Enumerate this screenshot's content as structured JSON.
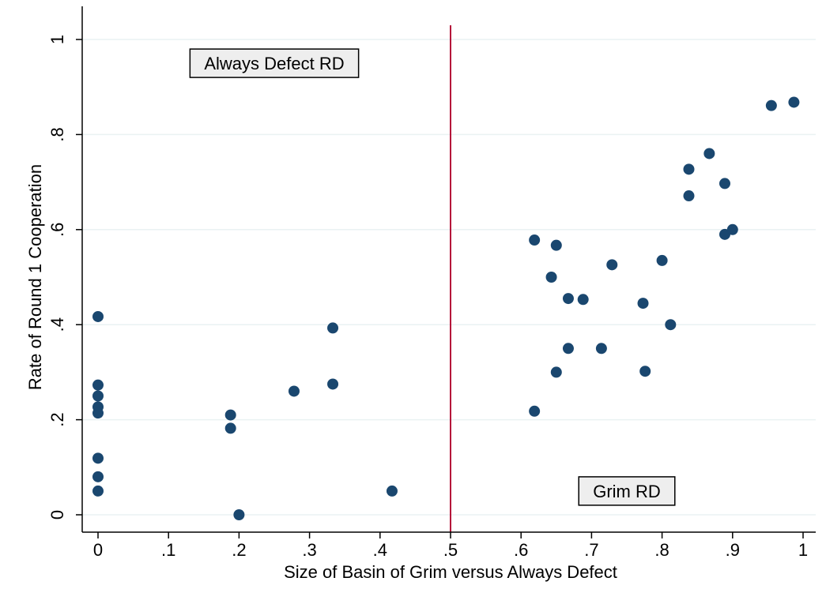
{
  "chart_data": {
    "type": "scatter",
    "title": "",
    "xlabel": "Size of Basin of Grim versus Always Defect",
    "ylabel": "Rate of Round 1 Cooperation",
    "xlim": [
      0,
      1
    ],
    "ylim": [
      0,
      1
    ],
    "grid": true,
    "legend": "none",
    "x_ticks": [
      0,
      0.1,
      0.2,
      0.3,
      0.4,
      0.5,
      0.6,
      0.7,
      0.8,
      0.9,
      1
    ],
    "x_tick_labels": [
      "0",
      ".1",
      ".2",
      ".3",
      ".4",
      ".5",
      ".6",
      ".7",
      ".8",
      ".9",
      "1"
    ],
    "y_ticks": [
      0,
      0.2,
      0.4,
      0.6,
      0.8,
      1
    ],
    "y_tick_labels": [
      "0",
      ".2",
      ".4",
      ".6",
      ".8",
      "1"
    ],
    "reference_line": {
      "x": 0.5,
      "color": "#b5123a"
    },
    "marker_color": "#1a476f",
    "gridline_color": "#eaf2f3",
    "annotations": [
      {
        "text": "Always Defect RD",
        "x": 0.25,
        "y": 0.95
      },
      {
        "text": "Grim RD",
        "x": 0.75,
        "y": 0.05
      }
    ],
    "points": [
      {
        "x": 0,
        "y": 0.417
      },
      {
        "x": 0,
        "y": 0.273
      },
      {
        "x": 0,
        "y": 0.25
      },
      {
        "x": 0,
        "y": 0.227
      },
      {
        "x": 0,
        "y": 0.214
      },
      {
        "x": 0,
        "y": 0.119
      },
      {
        "x": 0,
        "y": 0.08
      },
      {
        "x": 0,
        "y": 0.05
      },
      {
        "x": 0.188,
        "y": 0.21
      },
      {
        "x": 0.188,
        "y": 0.182
      },
      {
        "x": 0.2,
        "y": 0
      },
      {
        "x": 0.278,
        "y": 0.26
      },
      {
        "x": 0.333,
        "y": 0.393
      },
      {
        "x": 0.333,
        "y": 0.275
      },
      {
        "x": 0.417,
        "y": 0.05
      },
      {
        "x": 0.619,
        "y": 0.578
      },
      {
        "x": 0.619,
        "y": 0.218
      },
      {
        "x": 0.643,
        "y": 0.5
      },
      {
        "x": 0.65,
        "y": 0.567
      },
      {
        "x": 0.65,
        "y": 0.3
      },
      {
        "x": 0.667,
        "y": 0.455
      },
      {
        "x": 0.667,
        "y": 0.35
      },
      {
        "x": 0.688,
        "y": 0.453
      },
      {
        "x": 0.714,
        "y": 0.35
      },
      {
        "x": 0.729,
        "y": 0.526
      },
      {
        "x": 0.773,
        "y": 0.445
      },
      {
        "x": 0.776,
        "y": 0.302
      },
      {
        "x": 0.8,
        "y": 0.535
      },
      {
        "x": 0.812,
        "y": 0.4
      },
      {
        "x": 0.838,
        "y": 0.727
      },
      {
        "x": 0.838,
        "y": 0.671
      },
      {
        "x": 0.867,
        "y": 0.76
      },
      {
        "x": 0.889,
        "y": 0.697
      },
      {
        "x": 0.889,
        "y": 0.59
      },
      {
        "x": 0.9,
        "y": 0.6
      },
      {
        "x": 0.955,
        "y": 0.861
      },
      {
        "x": 0.987,
        "y": 0.868
      }
    ]
  }
}
